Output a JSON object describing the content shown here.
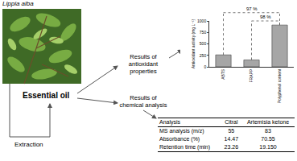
{
  "labels": {
    "plant": "Lippia alba",
    "product": "Essential oil",
    "process": "Extraction",
    "antioxidant_branch": "Results of antioxidant properties",
    "chemical_branch": "Results of chemical analysis"
  },
  "chart_data": {
    "type": "bar",
    "y_label": "Antioxidant activity (mg L⁻¹)",
    "categories": [
      "ABTS",
      "FRAPP",
      "Polyphenol content"
    ],
    "values": [
      260,
      150,
      910
    ],
    "color": "#a6a6a6",
    "ylim": [
      0,
      1000
    ],
    "yticks": [
      0,
      250,
      500,
      750,
      1000
    ],
    "grid": false,
    "annotations": [
      {
        "text": "97 %",
        "from": "ABTS",
        "to": "Polyphenol content"
      },
      {
        "text": "98 %",
        "from": "FRAPP",
        "to": "Polyphenol content"
      }
    ]
  },
  "table": {
    "header": [
      "Analysis",
      "Citral",
      "Artemisia ketone"
    ],
    "rows": [
      [
        "MS analysis (m/z)",
        "55",
        "83"
      ],
      [
        "Absorbance (%)",
        "14.47",
        "70.55"
      ],
      [
        "Retention time (min)",
        "23.26",
        "19.150"
      ]
    ]
  }
}
